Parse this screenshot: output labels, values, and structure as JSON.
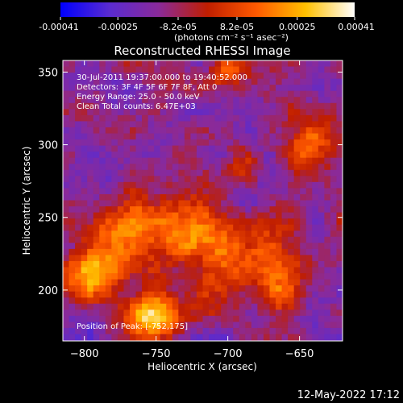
{
  "colorbar": {
    "ticks": [
      "-0.00041",
      "-0.00025",
      "-8.2e-05",
      "8.2e-05",
      "0.00025",
      "0.00041"
    ],
    "tick_values": [
      -0.00041,
      -0.00025,
      -8.2e-05,
      8.2e-05,
      0.00025,
      0.00041
    ],
    "range": [
      -0.00041,
      0.00041
    ],
    "unit_label": "(photons cm⁻² s⁻¹ asec⁻²)",
    "colors": [
      "#0000ff",
      "#5a2bd0",
      "#8a2a9a",
      "#c01e00",
      "#ff5a00",
      "#ffc000",
      "#ffffff"
    ]
  },
  "chart_data": {
    "type": "heatmap",
    "title": "Reconstructed RHESSI Image",
    "xlabel": "Heliocentric X (arcsec)",
    "ylabel": "Heliocentric Y (arcsec)",
    "xlim": [
      -815,
      -620
    ],
    "ylim": [
      165,
      358
    ],
    "xticks": [
      -800,
      -750,
      -700,
      -650
    ],
    "yticks": [
      200,
      250,
      300,
      350
    ],
    "grid": false,
    "annotations": {
      "time_range": "30-Jul-2011 19:37:00.000 to 19:40:52.000",
      "detectors": "Detectors: 3F 4F 5F 6F 7F 8F, Att 0",
      "energy": "Energy Range: 25.0 - 50.0 keV",
      "clean": "Clean    Total counts: 6.47E+03",
      "peak": "Position of Peak: [-752,175]"
    },
    "peak": [
      -752,
      175
    ]
  },
  "footer": {
    "timestamp": "12-May-2022 17:12"
  }
}
